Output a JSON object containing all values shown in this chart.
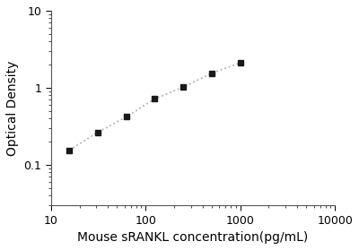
{
  "x": [
    15.6,
    31.2,
    62.5,
    125,
    250,
    500,
    1000
  ],
  "y": [
    0.155,
    0.265,
    0.42,
    0.72,
    1.02,
    1.55,
    2.1
  ],
  "xlabel": "Mouse sRANKL concentration(pg/mL)",
  "ylabel": "Optical Density",
  "xlim": [
    10,
    10000
  ],
  "ylim": [
    0.03,
    10
  ],
  "line_color": "#b0b0b0",
  "marker_color": "#1a1a1a",
  "background_color": "#ffffff",
  "xlabel_fontsize": 10,
  "ylabel_fontsize": 10,
  "tick_fontsize": 9
}
